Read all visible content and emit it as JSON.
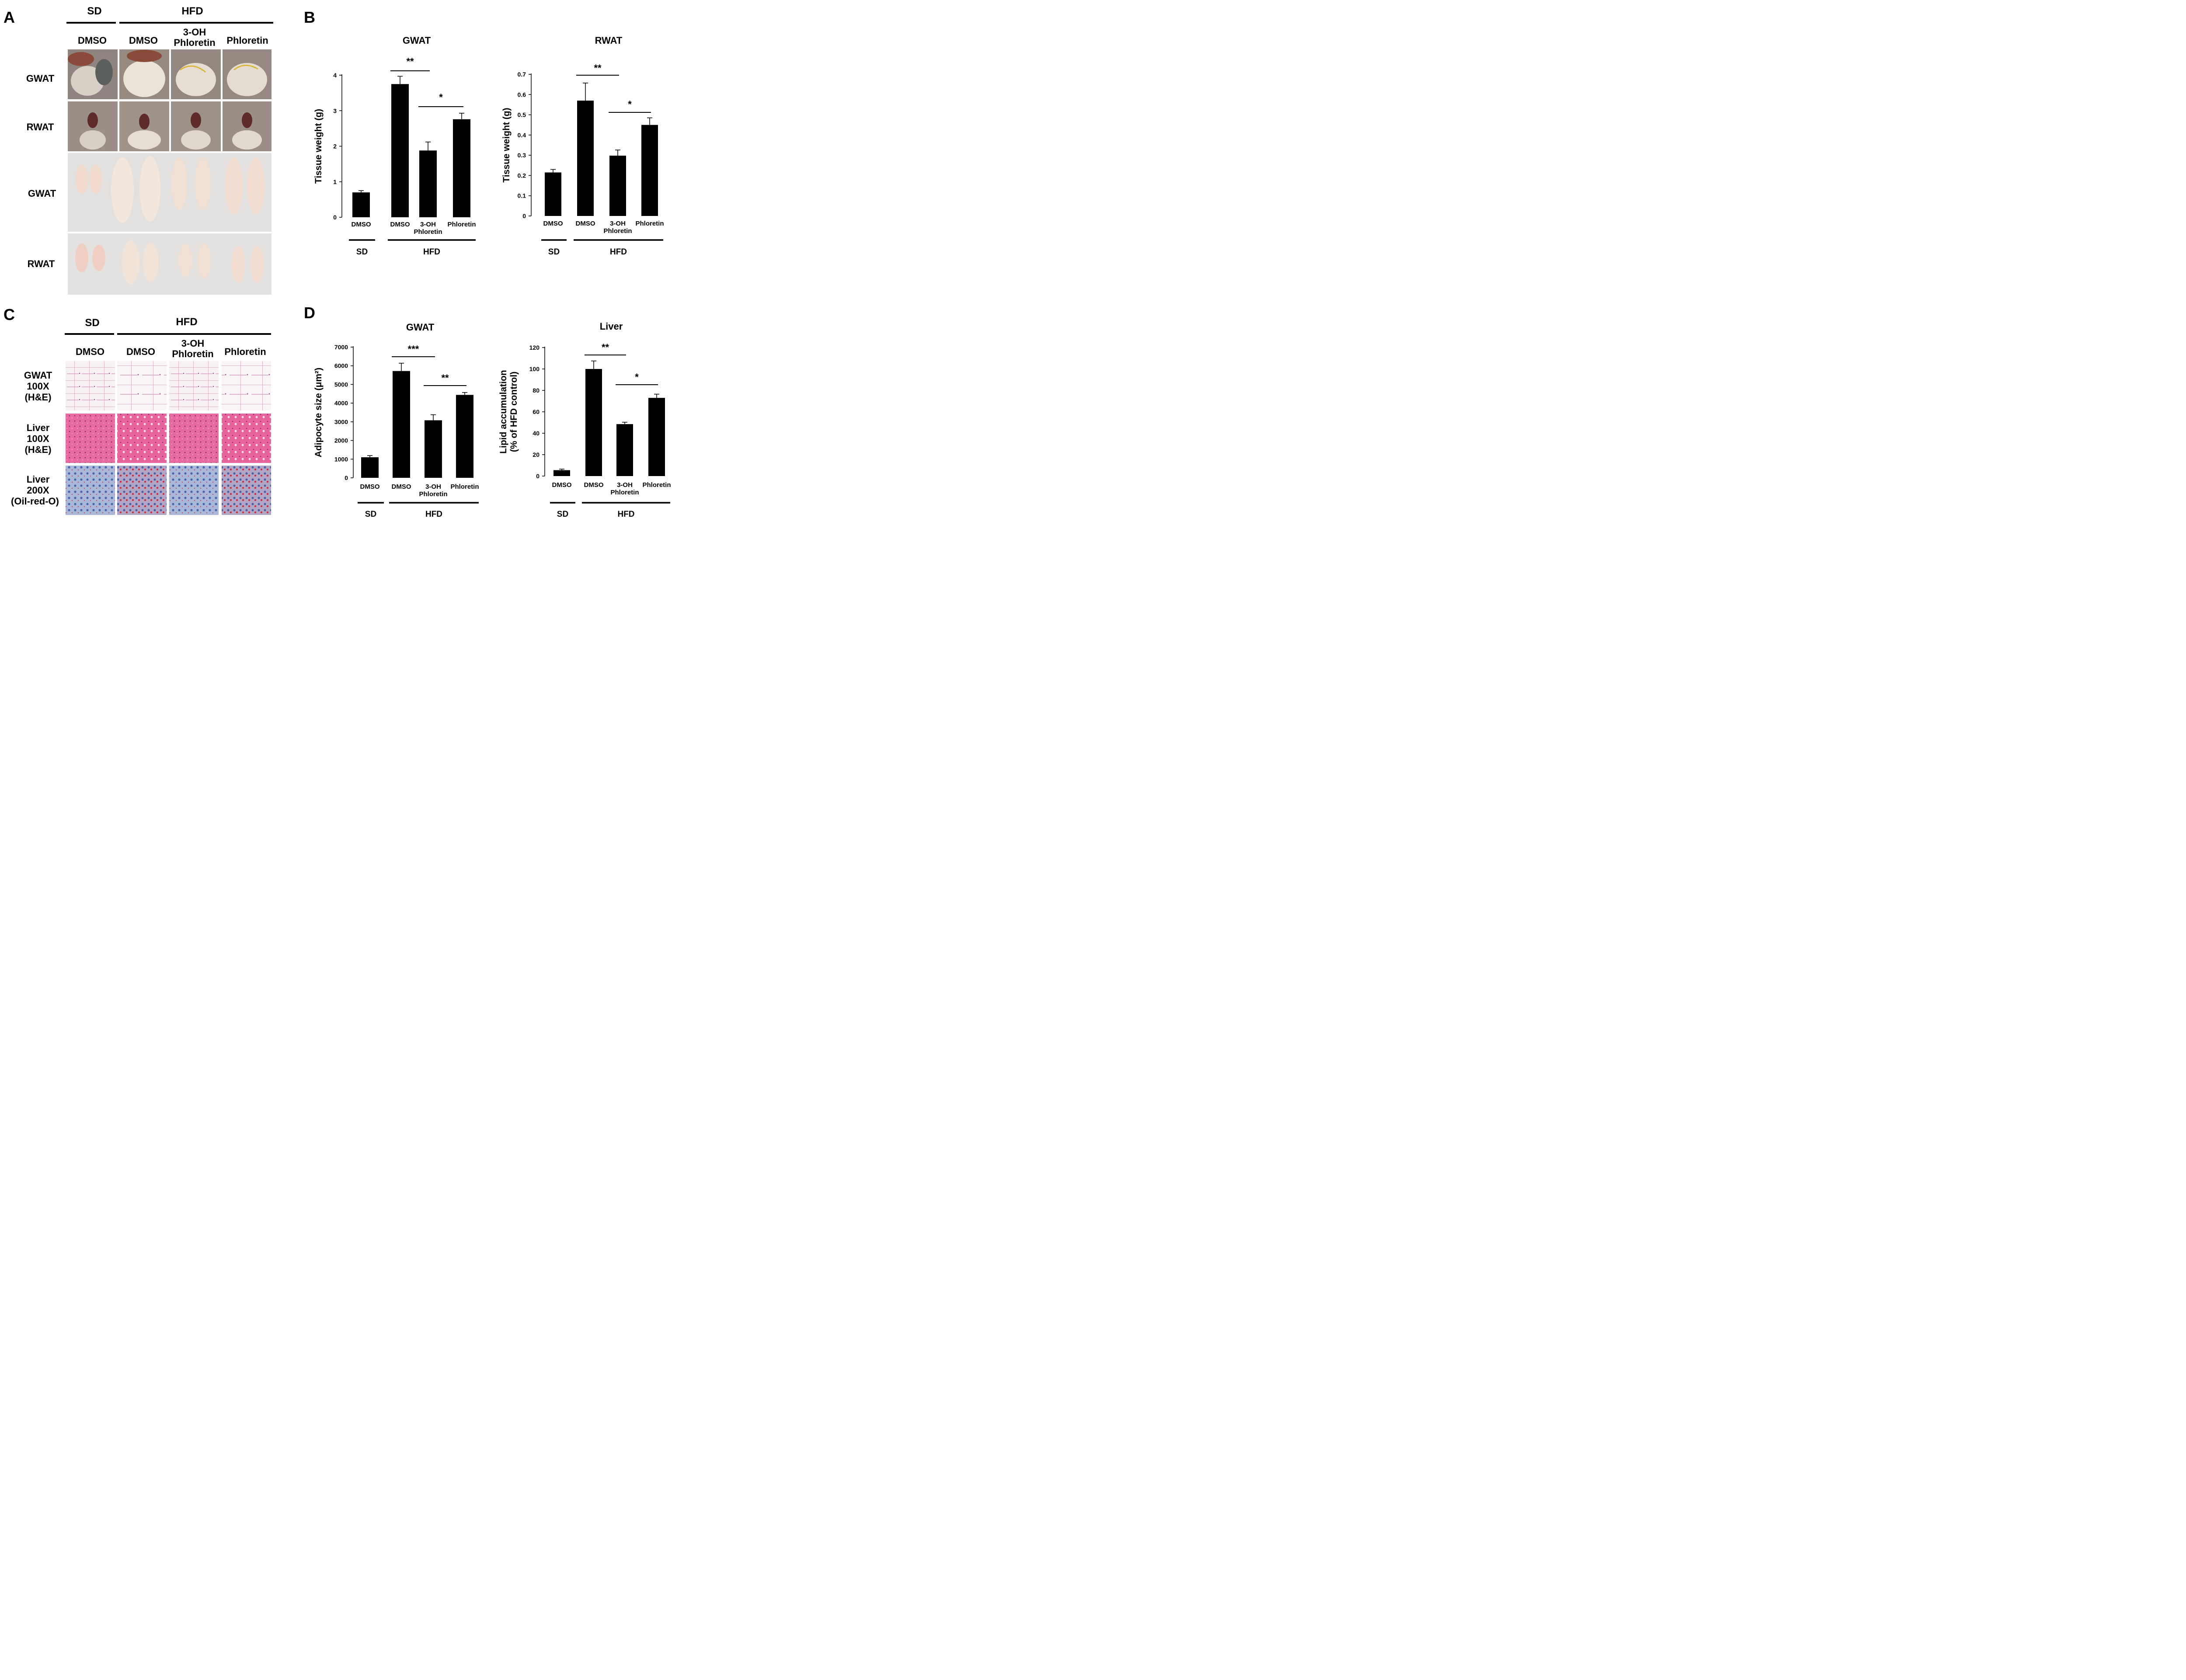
{
  "panels": {
    "A": "A",
    "B": "B",
    "C": "C",
    "D": "D"
  },
  "groups": {
    "sd": "SD",
    "hfd": "HFD"
  },
  "columns": {
    "dmso": "DMSO",
    "oh_line1": "3-OH",
    "oh_line2": "Phloretin",
    "phloretin": "Phloretin"
  },
  "panel_a": {
    "rows": [
      "GWAT",
      "RWAT",
      "GWAT",
      "RWAT"
    ]
  },
  "panel_c": {
    "rows": [
      [
        "GWAT",
        "100X",
        "(H&E)"
      ],
      [
        "Liver",
        "100X",
        "(H&E)"
      ],
      [
        "Liver",
        "200X",
        "(Oil-red-O)"
      ]
    ]
  },
  "colors": {
    "bar": "#000000",
    "organ_bg": "#9a8e86",
    "tissue_bg": "#e2e1df",
    "tissue": "#f1d9cc",
    "he_adipose": "#f8f1f4",
    "he_liver": "#e6609a",
    "oil_red": "#9aaad0"
  },
  "chart_data": [
    {
      "type": "bar",
      "title": "GWAT",
      "ylabel": "Tissue weight (g)",
      "ylim": [
        0,
        4
      ],
      "yticks": [
        "0",
        "1",
        "2",
        "3",
        "4"
      ],
      "categories": [
        [
          "DMSO"
        ],
        [
          "DMSO"
        ],
        [
          "3-OH",
          "Phloretin"
        ],
        [
          "Phloretin"
        ]
      ],
      "values": [
        0.7,
        3.75,
        1.88,
        2.76
      ],
      "errors": [
        0.05,
        0.22,
        0.24,
        0.17
      ],
      "significance": [
        {
          "from": 1,
          "to": 2,
          "label": "**"
        },
        {
          "from": 2,
          "to": 3,
          "label": "*"
        }
      ],
      "groups": [
        {
          "label": "SD",
          "from": 0,
          "to": 0
        },
        {
          "label": "HFD",
          "from": 1,
          "to": 3
        }
      ]
    },
    {
      "type": "bar",
      "title": "RWAT",
      "ylabel": "Tissue weight (g)",
      "ylim": [
        0,
        0.7
      ],
      "yticks": [
        "0",
        "0.1",
        "0.2",
        "0.3",
        "0.4",
        "0.5",
        "0.6",
        "0.7"
      ],
      "categories": [
        [
          "DMSO"
        ],
        [
          "DMSO"
        ],
        [
          "3-OH",
          "Phloretin"
        ],
        [
          "Phloretin"
        ]
      ],
      "values": [
        0.215,
        0.57,
        0.298,
        0.45
      ],
      "errors": [
        0.015,
        0.087,
        0.028,
        0.035
      ],
      "significance": [
        {
          "from": 1,
          "to": 2,
          "label": "**"
        },
        {
          "from": 2,
          "to": 3,
          "label": "*"
        }
      ],
      "groups": [
        {
          "label": "SD",
          "from": 0,
          "to": 0
        },
        {
          "label": "HFD",
          "from": 1,
          "to": 3
        }
      ]
    },
    {
      "type": "bar",
      "title": "GWAT",
      "ylabel": "Adipocyte size (μm²)",
      "ylim": [
        0,
        7000
      ],
      "yticks": [
        "0",
        "1000",
        "2000",
        "3000",
        "4000",
        "5000",
        "6000",
        "7000"
      ],
      "categories": [
        [
          "DMSO"
        ],
        [
          "DMSO"
        ],
        [
          "3-OH",
          "Phloretin"
        ],
        [
          "Phloretin"
        ]
      ],
      "values": [
        1100,
        5720,
        3080,
        4440
      ],
      "errors": [
        90,
        420,
        300,
        130
      ],
      "significance": [
        {
          "from": 1,
          "to": 2,
          "label": "***"
        },
        {
          "from": 2,
          "to": 3,
          "label": "**"
        }
      ],
      "groups": [
        {
          "label": "SD",
          "from": 0,
          "to": 0
        },
        {
          "label": "HFD",
          "from": 1,
          "to": 3
        }
      ]
    },
    {
      "type": "bar",
      "title": "Liver",
      "ylabel": [
        "Lipid accumulation",
        "(% of HFD control)"
      ],
      "ylim": [
        0,
        120
      ],
      "yticks": [
        "0",
        "20",
        "40",
        "60",
        "80",
        "100",
        "120"
      ],
      "categories": [
        [
          "DMSO"
        ],
        [
          "DMSO"
        ],
        [
          "3-OH",
          "Phloretin"
        ],
        [
          "Phloretin"
        ]
      ],
      "values": [
        5.5,
        100,
        48.5,
        73
      ],
      "errors": [
        1,
        7.5,
        1.8,
        3.5
      ],
      "significance": [
        {
          "from": 1,
          "to": 2,
          "label": "**"
        },
        {
          "from": 2,
          "to": 3,
          "label": "*"
        }
      ],
      "groups": [
        {
          "label": "SD",
          "from": 0,
          "to": 0
        },
        {
          "label": "HFD",
          "from": 1,
          "to": 3
        }
      ]
    }
  ]
}
